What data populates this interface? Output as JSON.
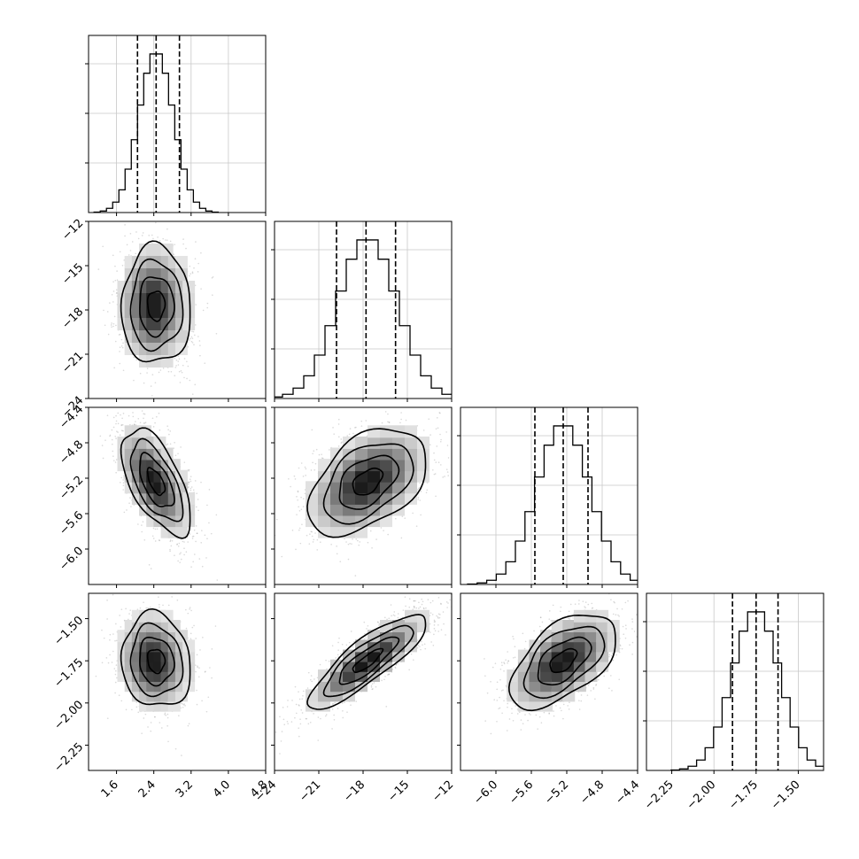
{
  "chart_data": {
    "type": "corner",
    "title": "",
    "grid": true,
    "colors": {
      "hist": "#000000",
      "points": "#808080",
      "density": "#000000",
      "grid": "#c8c8c8"
    },
    "parameters": [
      {
        "index": 0,
        "label": "",
        "center": 2.45,
        "sigma": 0.37,
        "range": [
          1.0,
          4.8
        ],
        "ticks": [
          1.6,
          2.4,
          3.2,
          4.0,
          4.8
        ],
        "tick_labels": [
          "1.6",
          "2.4",
          "3.2",
          "4.0",
          "4.8"
        ],
        "quantiles": [
          2.05,
          2.45,
          2.95
        ]
      },
      {
        "index": 1,
        "label": "",
        "center": -17.7,
        "sigma": 2.0,
        "range": [
          -24.0,
          -12.0
        ],
        "ticks": [
          -24,
          -21,
          -18,
          -15,
          -12
        ],
        "tick_labels": [
          "−24",
          "−21",
          "−18",
          "−15",
          "−12"
        ],
        "quantiles": [
          -19.8,
          -17.8,
          -15.8
        ]
      },
      {
        "index": 2,
        "label": "",
        "center": -5.24,
        "sigma": 0.3,
        "range": [
          -6.4,
          -4.4
        ],
        "ticks": [
          -6.0,
          -5.6,
          -5.2,
          -4.8,
          -4.4
        ],
        "tick_labels": [
          "−6.0",
          "−5.6",
          "−5.2",
          "−4.8",
          "−4.4"
        ],
        "quantiles": [
          -5.56,
          -5.24,
          -4.96
        ]
      },
      {
        "index": 3,
        "label": "",
        "center": -1.75,
        "sigma": 0.14,
        "range": [
          -2.4,
          -1.35
        ],
        "ticks": [
          -2.25,
          -2.0,
          -1.75,
          -1.5
        ],
        "tick_labels": [
          "−2.25",
          "−2.00",
          "−1.75",
          "−1.50"
        ],
        "quantiles": [
          -1.89,
          -1.75,
          -1.62
        ]
      }
    ],
    "correlations": [
      {
        "pair": [
          1,
          0
        ],
        "rho": 0.0
      },
      {
        "pair": [
          2,
          0
        ],
        "rho": -0.6
      },
      {
        "pair": [
          2,
          1
        ],
        "rho": 0.45
      },
      {
        "pair": [
          3,
          0
        ],
        "rho": -0.1
      },
      {
        "pair": [
          3,
          1
        ],
        "rho": 0.85
      },
      {
        "pair": [
          3,
          2
        ],
        "rho": 0.55
      }
    ],
    "histogram_bins": 20
  }
}
